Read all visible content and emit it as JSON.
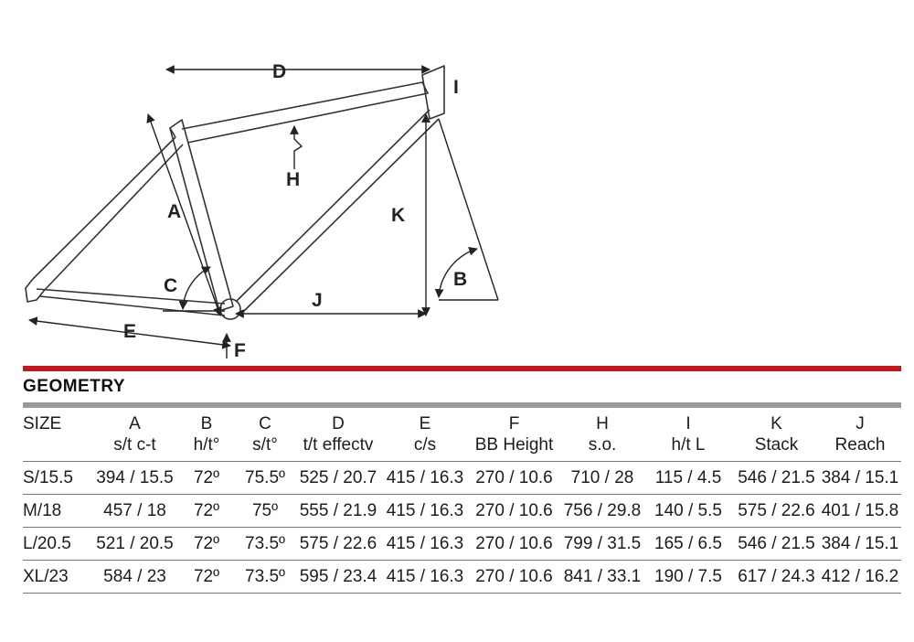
{
  "diagram": {
    "labels": {
      "A": "A",
      "B": "B",
      "C": "C",
      "D": "D",
      "E": "E",
      "F": "F",
      "H": "H",
      "I": "I",
      "J": "J",
      "K": "K"
    }
  },
  "section": {
    "title": "GEOMETRY"
  },
  "table": {
    "size_header": "SIZE",
    "columns": [
      {
        "letter": "A",
        "label": "s/t c-t"
      },
      {
        "letter": "B",
        "label": "h/t°"
      },
      {
        "letter": "C",
        "label": "s/t°"
      },
      {
        "letter": "D",
        "label": "t/t effectv"
      },
      {
        "letter": "E",
        "label": "c/s"
      },
      {
        "letter": "F",
        "label": "BB Height"
      },
      {
        "letter": "H",
        "label": "s.o."
      },
      {
        "letter": "I",
        "label": "h/t L"
      },
      {
        "letter": "K",
        "label": "Stack"
      },
      {
        "letter": "J",
        "label": "Reach"
      }
    ],
    "rows": [
      {
        "size": "S/15.5",
        "values": [
          "394 / 15.5",
          "72º",
          "75.5º",
          "525 / 20.7",
          "415 / 16.3",
          "270 / 10.6",
          "710 / 28",
          "115 / 4.5",
          "546 / 21.5",
          "384 / 15.1"
        ]
      },
      {
        "size": "M/18",
        "values": [
          "457 / 18",
          "72º",
          "75º",
          "555 / 21.9",
          "415 / 16.3",
          "270 / 10.6",
          "756 / 29.8",
          "140 / 5.5",
          "575 / 22.6",
          "401 / 15.8"
        ]
      },
      {
        "size": "L/20.5",
        "values": [
          "521 / 20.5",
          "72º",
          "73.5º",
          "575 / 22.6",
          "415 / 16.3",
          "270 / 10.6",
          "799 / 31.5",
          "165 / 6.5",
          "546 / 21.5",
          "384 / 15.1"
        ]
      },
      {
        "size": "XL/23",
        "values": [
          "584 / 23",
          "72º",
          "73.5º",
          "595 / 23.4",
          "415 / 16.3",
          "270 / 10.6",
          "841 / 33.1",
          "190 / 7.5",
          "617 / 24.3",
          "412 / 16.2"
        ]
      }
    ]
  }
}
